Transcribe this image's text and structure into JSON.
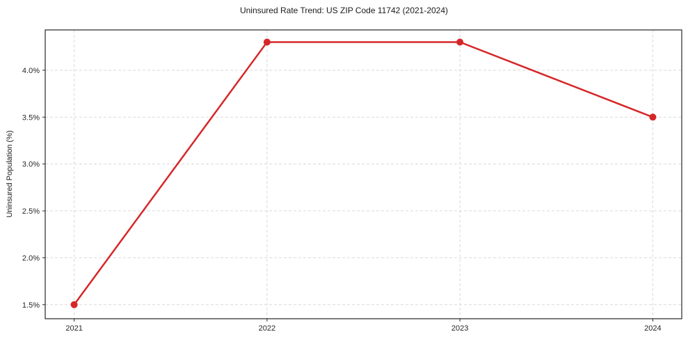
{
  "chart_data": {
    "type": "line",
    "title": "Uninsured Rate Trend: US ZIP Code 11742 (2021-2024)",
    "xlabel": "",
    "ylabel": "Uninsured Population (%)",
    "x": [
      2021,
      2022,
      2023,
      2024
    ],
    "values": [
      1.5,
      4.3,
      4.3,
      3.5
    ],
    "xtick_labels": [
      "2021",
      "2022",
      "2023",
      "2024"
    ],
    "ytick_values": [
      1.5,
      2.0,
      2.5,
      3.0,
      3.5,
      4.0
    ],
    "ytick_labels": [
      "1.5%",
      "2.0%",
      "2.5%",
      "3.0%",
      "3.5%",
      "4.0%"
    ],
    "xlim": [
      2020.85,
      2024.15
    ],
    "ylim": [
      1.35,
      4.43
    ],
    "grid": true,
    "grid_style": "dashed",
    "legend": "none",
    "marker": "circle",
    "colors": {
      "line": "#d62728",
      "grid": "#d9d9d9",
      "axis": "#262626",
      "tick_text": "#262626",
      "title_text": "#1a1a1a",
      "background": "#ffffff"
    }
  }
}
